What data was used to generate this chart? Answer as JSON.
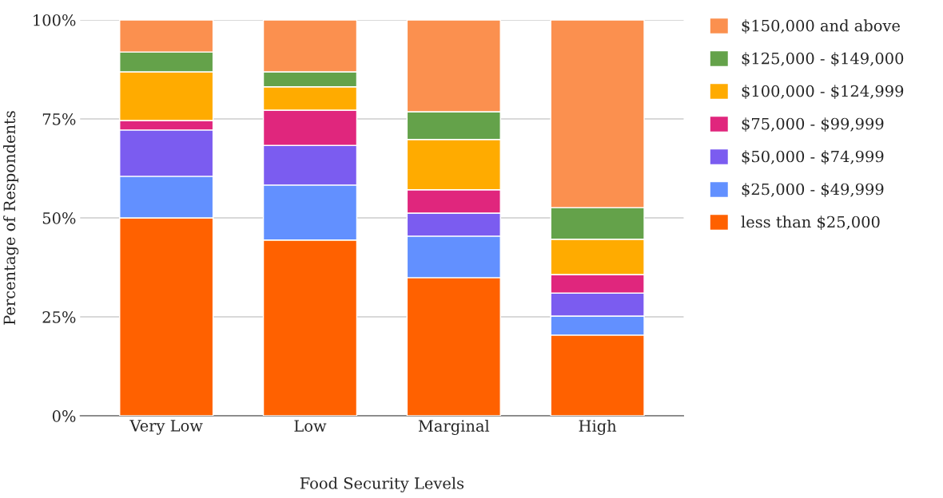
{
  "chart_data": {
    "type": "bar",
    "stacked": true,
    "xlabel": "Food Security Levels",
    "ylabel": "Percentage of Respondents",
    "categories": [
      "Very Low",
      "Low",
      "Marginal",
      "High"
    ],
    "series": [
      {
        "name": "less than $25,000",
        "color": "#ff6100",
        "values": [
          50.0,
          44.4,
          34.9,
          20.4
        ]
      },
      {
        "name": "$25,000 - $49,999",
        "color": "#6290ff",
        "values": [
          10.5,
          13.9,
          10.5,
          4.8
        ]
      },
      {
        "name": "$50,000 - $74,999",
        "color": "#7b5cf0",
        "values": [
          11.7,
          10.0,
          5.8,
          5.8
        ]
      },
      {
        "name": "$75,000 - $99,999",
        "color": "#e0267d",
        "values": [
          2.4,
          8.9,
          5.9,
          4.7
        ]
      },
      {
        "name": "$100,000 - $124,999",
        "color": "#ffab00",
        "values": [
          12.3,
          5.9,
          12.7,
          8.9
        ]
      },
      {
        "name": "$125,000 - $149,000",
        "color": "#64a24a",
        "values": [
          5.0,
          3.8,
          7.0,
          8.0
        ]
      },
      {
        "name": "$150,000 and above",
        "color": "#fb904f",
        "values": [
          8.1,
          13.1,
          23.2,
          47.4
        ]
      }
    ],
    "ylim": [
      0,
      100
    ],
    "yticks": [
      {
        "value": 0,
        "label": "0%"
      },
      {
        "value": 25,
        "label": "25%"
      },
      {
        "value": 50,
        "label": "50%"
      },
      {
        "value": 75,
        "label": "75%"
      },
      {
        "value": 100,
        "label": "100%"
      }
    ],
    "grid": "y",
    "legend": "right"
  }
}
